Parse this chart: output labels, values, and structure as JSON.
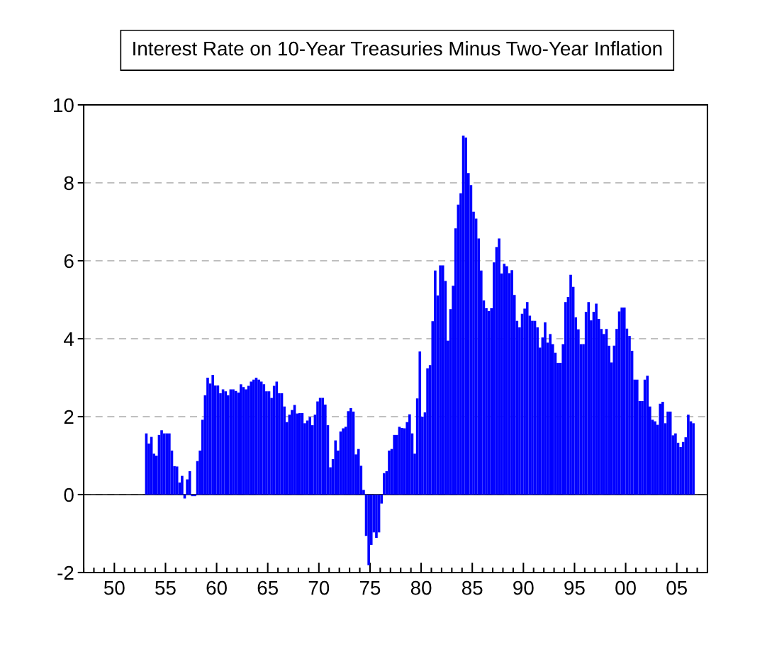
{
  "chart_data": {
    "type": "bar",
    "title": "Interest Rate on 10-Year Treasuries Minus Two-Year Inflation",
    "x": [
      "1953-01",
      "1953-04",
      "1953-07",
      "1953-10",
      "1954-01",
      "1954-04",
      "1954-07",
      "1954-10",
      "1955-01",
      "1955-04",
      "1955-07",
      "1955-10",
      "1956-01",
      "1956-04",
      "1956-07",
      "1956-10",
      "1957-01",
      "1957-04",
      "1957-07",
      "1957-10",
      "1958-01",
      "1958-04",
      "1958-07",
      "1958-10",
      "1959-01",
      "1959-04",
      "1959-07",
      "1959-10",
      "1960-01",
      "1960-04",
      "1960-07",
      "1960-10",
      "1961-01",
      "1961-04",
      "1961-07",
      "1961-10",
      "1962-01",
      "1962-04",
      "1962-07",
      "1962-10",
      "1963-01",
      "1963-04",
      "1963-07",
      "1963-10",
      "1964-01",
      "1964-04",
      "1964-07",
      "1964-10",
      "1965-01",
      "1965-04",
      "1965-07",
      "1965-10",
      "1966-01",
      "1966-04",
      "1966-07",
      "1966-10",
      "1967-01",
      "1967-04",
      "1967-07",
      "1967-10",
      "1968-01",
      "1968-04",
      "1968-07",
      "1968-10",
      "1969-01",
      "1969-04",
      "1969-07",
      "1969-10",
      "1970-01",
      "1970-04",
      "1970-07",
      "1970-10",
      "1971-01",
      "1971-04",
      "1971-07",
      "1971-10",
      "1972-01",
      "1972-04",
      "1972-07",
      "1972-10",
      "1973-01",
      "1973-04",
      "1973-07",
      "1973-10",
      "1974-01",
      "1974-04",
      "1974-07",
      "1974-10",
      "1975-01",
      "1975-04",
      "1975-07",
      "1975-10",
      "1976-01",
      "1976-04",
      "1976-07",
      "1976-10",
      "1977-01",
      "1977-04",
      "1977-07",
      "1977-10",
      "1978-01",
      "1978-04",
      "1978-07",
      "1978-10",
      "1979-01",
      "1979-04",
      "1979-07",
      "1979-10",
      "1980-01",
      "1980-04",
      "1980-07",
      "1980-10",
      "1981-01",
      "1981-04",
      "1981-07",
      "1981-10",
      "1982-01",
      "1982-04",
      "1982-07",
      "1982-10",
      "1983-01",
      "1983-04",
      "1983-07",
      "1983-10",
      "1984-01",
      "1984-04",
      "1984-07",
      "1984-10",
      "1985-01",
      "1985-04",
      "1985-07",
      "1985-10",
      "1986-01",
      "1986-04",
      "1986-07",
      "1986-10",
      "1987-01",
      "1987-04",
      "1987-07",
      "1987-10",
      "1988-01",
      "1988-04",
      "1988-07",
      "1988-10",
      "1989-01",
      "1989-04",
      "1989-07",
      "1989-10",
      "1990-01",
      "1990-04",
      "1990-07",
      "1990-10",
      "1991-01",
      "1991-04",
      "1991-07",
      "1991-10",
      "1992-01",
      "1992-04",
      "1992-07",
      "1992-10",
      "1993-01",
      "1993-04",
      "1993-07",
      "1993-10",
      "1994-01",
      "1994-04",
      "1994-07",
      "1994-10",
      "1995-01",
      "1995-04",
      "1995-07",
      "1995-10",
      "1996-01",
      "1996-04",
      "1996-07",
      "1996-10",
      "1997-01",
      "1997-04",
      "1997-07",
      "1997-10",
      "1998-01",
      "1998-04",
      "1998-07",
      "1998-10",
      "1999-01",
      "1999-04",
      "1999-07",
      "1999-10",
      "2000-01",
      "2000-04",
      "2000-07",
      "2000-10",
      "2001-01",
      "2001-04",
      "2001-07",
      "2001-10",
      "2002-01",
      "2002-04",
      "2002-07",
      "2002-10",
      "2003-01",
      "2003-04",
      "2003-07",
      "2003-10",
      "2004-01",
      "2004-04",
      "2004-07",
      "2004-10",
      "2005-01",
      "2005-04",
      "2005-07",
      "2005-10",
      "2006-01",
      "2006-04",
      "2006-07"
    ],
    "series": [
      {
        "color": "#0000ff",
        "values": [
          1.57,
          1.31,
          1.48,
          1.05,
          1.0,
          1.53,
          1.65,
          1.57,
          1.57,
          1.57,
          1.13,
          0.73,
          0.72,
          0.31,
          0.48,
          -0.1,
          0.39,
          0.6,
          -0.04,
          -0.04,
          0.86,
          1.13,
          1.92,
          2.55,
          3.0,
          2.85,
          3.07,
          2.8,
          2.8,
          2.6,
          2.7,
          2.65,
          2.55,
          2.7,
          2.7,
          2.66,
          2.62,
          2.83,
          2.76,
          2.7,
          2.79,
          2.9,
          2.95,
          3.0,
          2.95,
          2.9,
          2.83,
          2.65,
          2.65,
          2.48,
          2.79,
          2.9,
          2.6,
          2.6,
          2.26,
          1.86,
          2.05,
          2.17,
          2.3,
          2.08,
          2.09,
          2.09,
          1.83,
          1.9,
          1.99,
          1.78,
          2.05,
          2.39,
          2.48,
          2.48,
          2.31,
          1.78,
          0.7,
          0.91,
          1.39,
          1.13,
          1.62,
          1.7,
          1.74,
          2.14,
          2.22,
          2.13,
          1.03,
          1.17,
          0.74,
          0.12,
          -1.06,
          -1.81,
          -1.29,
          -0.97,
          -1.11,
          -0.97,
          -0.23,
          0.55,
          0.6,
          1.13,
          1.17,
          1.53,
          1.53,
          1.74,
          1.71,
          1.7,
          1.86,
          2.06,
          1.57,
          1.05,
          2.47,
          3.67,
          2.0,
          2.11,
          3.24,
          3.32,
          4.45,
          5.75,
          5.11,
          5.88,
          5.88,
          5.48,
          3.95,
          4.76,
          5.36,
          6.83,
          7.44,
          7.73,
          9.21,
          9.16,
          8.25,
          7.94,
          7.26,
          7.08,
          6.57,
          5.75,
          4.98,
          4.78,
          4.71,
          4.78,
          5.96,
          6.35,
          6.57,
          5.67,
          5.92,
          5.86,
          5.68,
          5.76,
          5.12,
          4.46,
          4.29,
          4.64,
          4.77,
          4.94,
          4.59,
          4.46,
          4.46,
          4.29,
          3.77,
          4.03,
          4.42,
          3.9,
          4.12,
          3.86,
          3.64,
          3.38,
          3.38,
          3.86,
          4.94,
          5.07,
          5.64,
          5.33,
          4.55,
          4.24,
          3.86,
          3.86,
          4.69,
          4.94,
          4.47,
          4.69,
          4.9,
          4.51,
          4.25,
          4.12,
          4.25,
          3.82,
          3.39,
          3.82,
          4.25,
          4.7,
          4.8,
          4.8,
          4.26,
          4.07,
          3.69,
          2.95,
          2.95,
          2.4,
          2.4,
          2.95,
          3.05,
          2.26,
          1.92,
          1.88,
          1.79,
          2.33,
          2.38,
          1.83,
          2.13,
          2.13,
          1.52,
          1.57,
          1.33,
          1.22,
          1.35,
          1.47,
          2.05,
          1.88,
          1.83
        ]
      }
    ],
    "xlim": [
      "1947",
      "2008"
    ],
    "xticks": [
      {
        "value": "1947",
        "label": null
      },
      {
        "value": "1948",
        "label": null
      },
      {
        "value": "1949",
        "label": null
      },
      {
        "value": "1950",
        "label": "50"
      },
      {
        "value": "1951",
        "label": null
      },
      {
        "value": "1952",
        "label": null
      },
      {
        "value": "1953",
        "label": null
      },
      {
        "value": "1954",
        "label": null
      },
      {
        "value": "1955",
        "label": "55"
      },
      {
        "value": "1956",
        "label": null
      },
      {
        "value": "1957",
        "label": null
      },
      {
        "value": "1958",
        "label": null
      },
      {
        "value": "1959",
        "label": null
      },
      {
        "value": "1960",
        "label": "60"
      },
      {
        "value": "1961",
        "label": null
      },
      {
        "value": "1962",
        "label": null
      },
      {
        "value": "1963",
        "label": null
      },
      {
        "value": "1964",
        "label": null
      },
      {
        "value": "1965",
        "label": "65"
      },
      {
        "value": "1966",
        "label": null
      },
      {
        "value": "1967",
        "label": null
      },
      {
        "value": "1968",
        "label": null
      },
      {
        "value": "1969",
        "label": null
      },
      {
        "value": "1970",
        "label": "70"
      },
      {
        "value": "1971",
        "label": null
      },
      {
        "value": "1972",
        "label": null
      },
      {
        "value": "1973",
        "label": null
      },
      {
        "value": "1974",
        "label": null
      },
      {
        "value": "1975",
        "label": "75"
      },
      {
        "value": "1976",
        "label": null
      },
      {
        "value": "1977",
        "label": null
      },
      {
        "value": "1978",
        "label": null
      },
      {
        "value": "1979",
        "label": null
      },
      {
        "value": "1980",
        "label": "80"
      },
      {
        "value": "1981",
        "label": null
      },
      {
        "value": "1982",
        "label": null
      },
      {
        "value": "1983",
        "label": null
      },
      {
        "value": "1984",
        "label": null
      },
      {
        "value": "1985",
        "label": "85"
      },
      {
        "value": "1986",
        "label": null
      },
      {
        "value": "1987",
        "label": null
      },
      {
        "value": "1988",
        "label": null
      },
      {
        "value": "1989",
        "label": null
      },
      {
        "value": "1990",
        "label": "90"
      },
      {
        "value": "1991",
        "label": null
      },
      {
        "value": "1992",
        "label": null
      },
      {
        "value": "1993",
        "label": null
      },
      {
        "value": "1994",
        "label": null
      },
      {
        "value": "1995",
        "label": "95"
      },
      {
        "value": "1996",
        "label": null
      },
      {
        "value": "1997",
        "label": null
      },
      {
        "value": "1998",
        "label": null
      },
      {
        "value": "1999",
        "label": null
      },
      {
        "value": "2000",
        "label": "00"
      },
      {
        "value": "2001",
        "label": null
      },
      {
        "value": "2002",
        "label": null
      },
      {
        "value": "2003",
        "label": null
      },
      {
        "value": "2004",
        "label": null
      },
      {
        "value": "2005",
        "label": "05"
      },
      {
        "value": "2006",
        "label": null
      },
      {
        "value": "2007",
        "label": null
      }
    ],
    "ylim": [
      -2,
      10
    ],
    "yticks": [
      -2,
      0,
      2,
      4,
      6,
      8,
      10
    ],
    "grid": "y",
    "ref_lines": [
      {
        "axis": "y",
        "value": 0,
        "color": "#000000",
        "line_style": "solid"
      }
    ]
  }
}
